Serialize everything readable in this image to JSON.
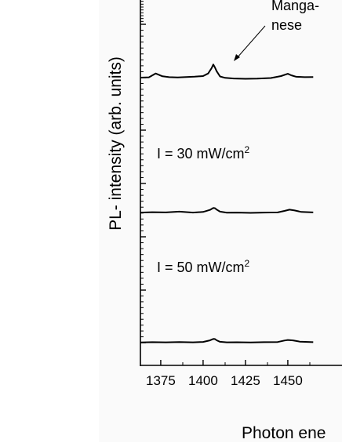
{
  "chart_data": {
    "type": "line",
    "xlabel": "Photon ene",
    "ylabel": "PL- intensity (arb. units)",
    "x_tick_labels": [
      "1375",
      "1400",
      "1425",
      "1450"
    ],
    "annotations": {
      "manganese_line1": "Manga-",
      "manganese_line2": "nese",
      "i30_text": "I = 30 mW/cm",
      "i30_sup": "2",
      "i50_text": "I = 50 mW/cm",
      "i50_sup": "2"
    },
    "series": [
      {
        "x": [
          1363,
          1368,
          1372,
          1376,
          1380,
          1385,
          1390,
          1395,
          1400,
          1403,
          1405,
          1406,
          1407,
          1408,
          1410,
          1413,
          1418,
          1425,
          1432,
          1440,
          1446,
          1450,
          1452,
          1455,
          1460,
          1465
        ],
        "y": [
          0.74,
          0.78,
          1.3,
          0.92,
          0.8,
          0.77,
          0.82,
          0.86,
          0.95,
          1.3,
          2.0,
          2.5,
          2.1,
          1.6,
          0.9,
          0.7,
          0.62,
          0.58,
          0.6,
          0.68,
          0.95,
          1.25,
          1.05,
          0.85,
          0.8,
          0.82
        ]
      },
      {
        "x": [
          1363,
          1370,
          1378,
          1386,
          1394,
          1400,
          1404,
          1406,
          1407,
          1408,
          1410,
          1414,
          1420,
          1428,
          1436,
          1444,
          1448,
          1451,
          1454,
          1458,
          1465
        ],
        "y": [
          0.1,
          0.15,
          0.12,
          0.22,
          0.1,
          0.18,
          0.45,
          0.72,
          0.68,
          0.5,
          0.22,
          0.08,
          0.1,
          0.05,
          0.1,
          0.12,
          0.32,
          0.48,
          0.38,
          0.18,
          0.12
        ]
      },
      {
        "x": [
          1363,
          1370,
          1378,
          1386,
          1394,
          1400,
          1404,
          1406,
          1407,
          1408,
          1410,
          1414,
          1420,
          1428,
          1436,
          1444,
          1448,
          1450,
          1453,
          1457,
          1465
        ],
        "y": [
          0.02,
          0.06,
          0.04,
          0.08,
          0.04,
          0.1,
          0.3,
          0.5,
          0.48,
          0.32,
          0.12,
          0.04,
          0.05,
          0.02,
          0.06,
          0.08,
          0.28,
          0.36,
          0.3,
          0.14,
          0.06
        ]
      }
    ]
  }
}
